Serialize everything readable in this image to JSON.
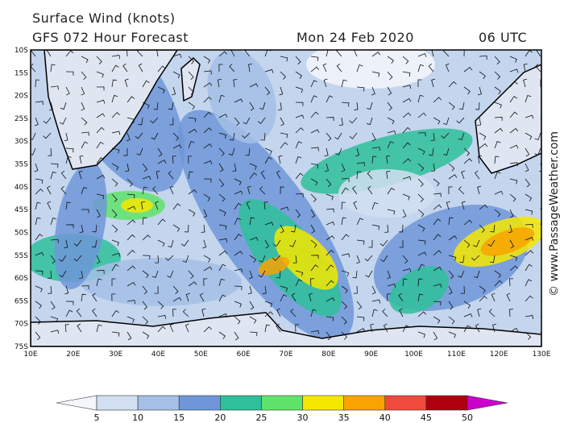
{
  "header": {
    "title": "Surface Wind (knots)",
    "subtitle": "GFS 072 Hour Forecast",
    "date": "Mon 24 Feb 2020",
    "time": "06 UTC"
  },
  "map": {
    "lat_labels": [
      "10S",
      "15S",
      "20S",
      "25S",
      "30S",
      "35S",
      "40S",
      "45S",
      "50S",
      "55S",
      "60S",
      "65S",
      "70S",
      "75S"
    ],
    "lon_labels": [
      "10E",
      "20E",
      "30E",
      "40E",
      "50E",
      "60E",
      "70E",
      "80E",
      "90E",
      "100E",
      "110E",
      "120E",
      "130E"
    ]
  },
  "colorbar": {
    "labels": [
      5,
      10,
      15,
      20,
      25,
      30,
      35,
      40,
      45,
      50
    ],
    "colors": [
      "#f4f6fb",
      "#d2dff2",
      "#a5bfe6",
      "#6e96d8",
      "#2fbf9a",
      "#5fe36a",
      "#f5e800",
      "#f8a300",
      "#f04a3c",
      "#b00010",
      "#cc00cc"
    ]
  },
  "credit": "© www.PassageWeather.com"
}
